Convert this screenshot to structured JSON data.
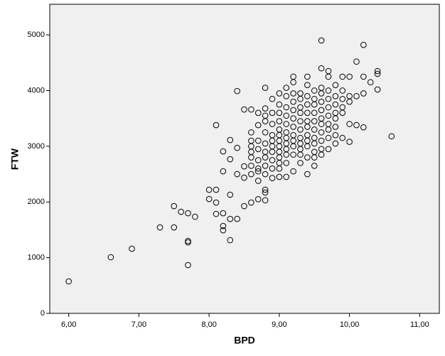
{
  "chart_data": {
    "type": "scatter",
    "xlabel": "BPD",
    "ylabel": "FTW",
    "x": [
      6.0,
      6.6,
      6.9,
      7.3,
      7.5,
      7.5,
      7.6,
      7.7,
      7.7,
      7.7,
      7.7,
      7.8,
      8.0,
      8.0,
      8.1,
      8.1,
      8.1,
      8.1,
      8.2,
      8.2,
      8.2,
      8.2,
      8.2,
      8.3,
      8.3,
      8.3,
      8.3,
      8.3,
      8.4,
      8.4,
      8.4,
      8.4,
      8.5,
      8.5,
      8.5,
      8.5,
      8.6,
      8.6,
      8.6,
      8.6,
      8.6,
      8.6,
      8.6,
      8.6,
      8.6,
      8.7,
      8.7,
      8.7,
      8.7,
      8.7,
      8.7,
      8.7,
      8.7,
      8.7,
      8.8,
      8.8,
      8.8,
      8.8,
      8.8,
      8.8,
      8.8,
      8.8,
      8.8,
      8.8,
      8.8,
      8.8,
      8.8,
      8.9,
      8.9,
      8.9,
      8.9,
      8.9,
      8.9,
      8.9,
      8.9,
      8.9,
      8.9,
      9.0,
      9.0,
      9.0,
      9.0,
      9.0,
      9.0,
      9.0,
      9.0,
      9.0,
      9.0,
      9.0,
      9.0,
      9.0,
      9.1,
      9.1,
      9.1,
      9.1,
      9.1,
      9.1,
      9.1,
      9.1,
      9.1,
      9.1,
      9.1,
      9.1,
      9.2,
      9.2,
      9.2,
      9.2,
      9.2,
      9.2,
      9.2,
      9.2,
      9.2,
      9.2,
      9.2,
      9.2,
      9.3,
      9.3,
      9.3,
      9.3,
      9.3,
      9.3,
      9.3,
      9.3,
      9.3,
      9.3,
      9.3,
      9.4,
      9.4,
      9.4,
      9.4,
      9.4,
      9.4,
      9.4,
      9.4,
      9.4,
      9.4,
      9.4,
      9.4,
      9.5,
      9.5,
      9.5,
      9.5,
      9.5,
      9.5,
      9.5,
      9.5,
      9.5,
      9.5,
      9.5,
      9.6,
      9.6,
      9.6,
      9.6,
      9.6,
      9.6,
      9.6,
      9.6,
      9.6,
      9.6,
      9.6,
      9.6,
      9.7,
      9.7,
      9.7,
      9.7,
      9.7,
      9.7,
      9.7,
      9.7,
      9.7,
      9.7,
      9.8,
      9.8,
      9.8,
      9.8,
      9.8,
      9.8,
      9.8,
      9.8,
      9.9,
      9.9,
      9.9,
      9.9,
      9.9,
      9.9,
      10.0,
      10.0,
      10.0,
      10.0,
      10.0,
      10.1,
      10.1,
      10.1,
      10.2,
      10.2,
      10.2,
      10.2,
      10.3,
      10.4,
      10.4,
      10.4,
      10.6
    ],
    "values": [
      574,
      1008,
      1160,
      1543,
      1926,
      1543,
      1824,
      1798,
      1300,
      1275,
      867,
      1735,
      2219,
      2053,
      2219,
      1990,
      1786,
      3380,
      2551,
      2908,
      1798,
      1569,
      1492,
      2130,
      2768,
      3112,
      1696,
      1314,
      3992,
      2972,
      2500,
      1696,
      2640,
      3661,
      1926,
      2436,
      3660,
      3250,
      3100,
      3000,
      2900,
      2800,
      2650,
      2500,
      1990,
      3600,
      3380,
      3100,
      2950,
      2750,
      2600,
      2550,
      2380,
      2050,
      4050,
      3680,
      3550,
      3450,
      3250,
      3050,
      2900,
      2800,
      2650,
      2500,
      2220,
      2170,
      2030,
      3850,
      3600,
      3400,
      3200,
      3100,
      3000,
      2900,
      2750,
      2600,
      2430,
      3950,
      3750,
      3600,
      3450,
      3300,
      3200,
      3100,
      3000,
      2900,
      2800,
      2700,
      2600,
      2450,
      4050,
      3900,
      3700,
      3550,
      3400,
      3250,
      3150,
      3050,
      2950,
      2850,
      2700,
      2450,
      4250,
      4150,
      3950,
      3800,
      3650,
      3500,
      3350,
      3200,
      3100,
      3000,
      2850,
      2550,
      3950,
      3850,
      3700,
      3600,
      3450,
      3300,
      3150,
      3050,
      2950,
      2850,
      2700,
      4250,
      4100,
      3900,
      3750,
      3600,
      3450,
      3350,
      3200,
      3100,
      3000,
      2800,
      2500,
      4000,
      3850,
      3750,
      3600,
      3450,
      3300,
      3150,
      3050,
      2900,
      2800,
      2650,
      4900,
      4400,
      4050,
      3950,
      3800,
      3650,
      3500,
      3400,
      3250,
      3100,
      2950,
      2850,
      4350,
      4250,
      4000,
      3850,
      3700,
      3550,
      3400,
      3300,
      3150,
      2950,
      4100,
      3900,
      3750,
      3600,
      3500,
      3350,
      3200,
      3050,
      4250,
      4000,
      3850,
      3700,
      3600,
      3150,
      4250,
      3900,
      3800,
      3400,
      3080,
      4520,
      3900,
      3380,
      4820,
      4250,
      3950,
      3340,
      4150,
      4350,
      4300,
      4020,
      3180
    ],
    "color": "#000000",
    "xlim": [
      5.73,
      11.28
    ],
    "ylim": [
      0,
      5550
    ],
    "xticks": [
      {
        "value": 6,
        "label": "6,00"
      },
      {
        "value": 7,
        "label": "7,00"
      },
      {
        "value": 8,
        "label": "8,00"
      },
      {
        "value": 9,
        "label": "9,00"
      },
      {
        "value": 10,
        "label": "10,00"
      },
      {
        "value": 11,
        "label": "11,00"
      }
    ],
    "yticks": [
      0,
      1000,
      2000,
      3000,
      4000,
      5000
    ]
  }
}
